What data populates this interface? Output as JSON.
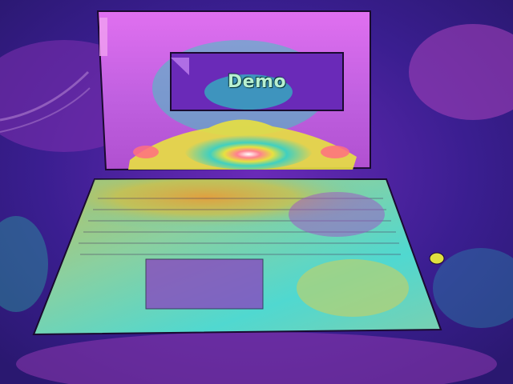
{
  "image": {
    "subject": "thermal-image-laptop",
    "screen_text": "Demo"
  },
  "palette": {
    "background": "#2a1a6e",
    "cold": "#3a1e9a",
    "cool": "#5a2ab0",
    "mid": "#28c8c8",
    "warm": "#d8e040",
    "hot": "#ff6a80",
    "hottest": "#ffffff",
    "lid": "#d060e0"
  }
}
